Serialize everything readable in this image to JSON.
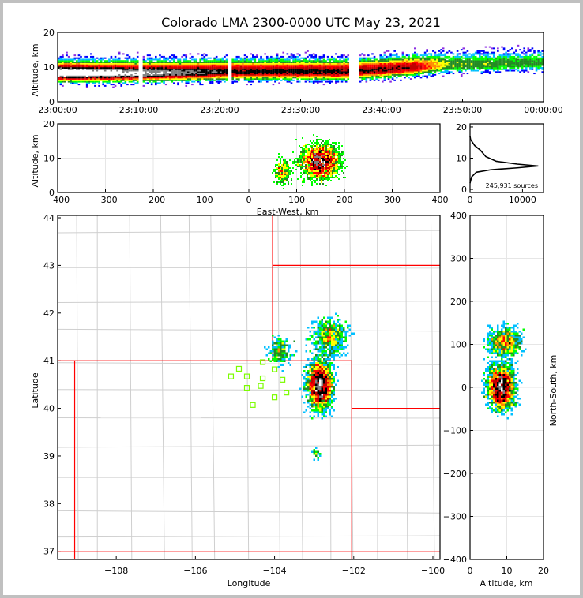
{
  "chart_data": [
    {
      "type": "heatmap",
      "name": "time-height",
      "title": "Colorado LMA 2300-0000 UTC May 23, 2021",
      "xlabel": "",
      "ylabel": "Altitude, km",
      "xticks": [
        "23:00:00",
        "23:10:00",
        "23:20:00",
        "23:30:00",
        "23:40:00",
        "23:50:00",
        "00:00:00"
      ],
      "yticks": [
        0,
        10,
        20
      ],
      "xlim_minutes": [
        0,
        60
      ],
      "ylim": [
        0,
        20
      ],
      "gaps_minutes": [
        [
          10,
          10.3
        ],
        [
          21,
          21.4
        ],
        [
          36,
          37.2
        ]
      ],
      "core_altitude_by_minute": [
        [
          0,
          8
        ],
        [
          10,
          8
        ],
        [
          22,
          8.5
        ],
        [
          36,
          8.5
        ],
        [
          40,
          9
        ],
        [
          48,
          10.5
        ],
        [
          60,
          11
        ]
      ],
      "intensity_by_minute": [
        [
          0,
          1.0
        ],
        [
          10,
          0.9
        ],
        [
          22,
          0.75
        ],
        [
          36,
          0.75
        ],
        [
          44,
          0.7
        ],
        [
          48,
          0.4
        ],
        [
          60,
          0.35
        ]
      ]
    },
    {
      "type": "heatmap",
      "name": "east-west-height",
      "xlabel": "East-West, km",
      "ylabel": "Altitude, km",
      "xticks": [
        -400,
        -300,
        -200,
        -100,
        0,
        100,
        200,
        300,
        400
      ],
      "yticks": [
        0,
        10,
        20
      ],
      "xlim": [
        -400,
        400
      ],
      "ylim": [
        0,
        20
      ],
      "clusters": [
        {
          "x": 150,
          "y": 9,
          "sx": 28,
          "sy": 3.5,
          "n": 2600
        },
        {
          "x": 70,
          "y": 6,
          "sx": 12,
          "sy": 2.5,
          "n": 300
        }
      ]
    },
    {
      "type": "line",
      "name": "altitude-histogram",
      "annotation": "245,931 sources",
      "xticks": [
        0,
        10000
      ],
      "yticks": [
        0,
        10,
        20
      ],
      "xlim": [
        0,
        14000
      ],
      "ylim": [
        -1,
        21
      ],
      "points": [
        [
          0,
          2
        ],
        [
          300,
          4
        ],
        [
          1200,
          5.5
        ],
        [
          4000,
          6.3
        ],
        [
          9000,
          6.9
        ],
        [
          13000,
          7.5
        ],
        [
          9000,
          8.1
        ],
        [
          5000,
          9
        ],
        [
          3000,
          10.5
        ],
        [
          2000,
          12.5
        ],
        [
          900,
          14
        ],
        [
          100,
          16
        ],
        [
          0,
          17
        ]
      ]
    },
    {
      "type": "scatter",
      "name": "plan-view-map",
      "xlabel": "Longitude",
      "ylabel": "Latitude",
      "xticks": [
        -108,
        -106,
        -104,
        -102,
        -100
      ],
      "yticks": [
        37,
        38,
        39,
        40,
        41,
        42,
        43,
        44
      ],
      "xlim": [
        -109.48,
        -99.82
      ],
      "ylim": [
        36.83,
        44.05
      ],
      "stations": [
        [
          -104.9,
          40.83
        ],
        [
          -105.1,
          40.67
        ],
        [
          -104.7,
          40.67
        ],
        [
          -104.3,
          40.63
        ],
        [
          -104.7,
          40.43
        ],
        [
          -104.35,
          40.47
        ],
        [
          -103.8,
          40.6
        ],
        [
          -104.0,
          40.82
        ],
        [
          -104.3,
          40.97
        ],
        [
          -103.7,
          40.33
        ],
        [
          -104.0,
          40.23
        ],
        [
          -104.55,
          40.07
        ]
      ],
      "clusters": [
        {
          "x": -102.85,
          "y": 40.5,
          "sx": 0.22,
          "sy": 0.35,
          "n": 2600
        },
        {
          "x": -102.6,
          "y": 41.5,
          "sx": 0.3,
          "sy": 0.25,
          "n": 700
        },
        {
          "x": -103.85,
          "y": 41.2,
          "sx": 0.2,
          "sy": 0.2,
          "n": 250
        },
        {
          "x": -102.95,
          "y": 39.05,
          "sx": 0.08,
          "sy": 0.08,
          "n": 30
        }
      ]
    },
    {
      "type": "heatmap",
      "name": "north-south-height",
      "xlabel": "Altitude, km",
      "ylabel": "North-South, km",
      "xticks": [
        0,
        10,
        20
      ],
      "yticks": [
        -400,
        -300,
        -200,
        -100,
        0,
        100,
        200,
        300,
        400
      ],
      "xlim": [
        0,
        20
      ],
      "ylim": [
        -400,
        400
      ],
      "clusters": [
        {
          "x": 8.5,
          "y": 0,
          "sx": 2.5,
          "sy": 35,
          "n": 2600
        },
        {
          "x": 9.5,
          "y": 105,
          "sx": 3,
          "sy": 25,
          "n": 800
        }
      ]
    }
  ]
}
